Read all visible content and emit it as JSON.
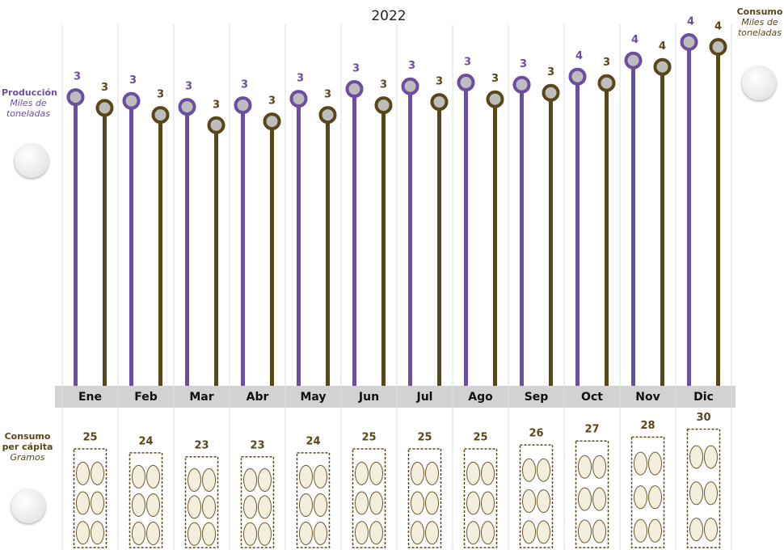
{
  "chart_data": {
    "type": "lollipop",
    "title": "2022",
    "categories": [
      "Ene",
      "Feb",
      "Mar",
      "Abr",
      "May",
      "Jun",
      "Jul",
      "Ago",
      "Sep",
      "Oct",
      "Nov",
      "Dic"
    ],
    "ylim": [
      -2.15,
      4.55
    ],
    "series": [
      {
        "name": "Producción",
        "unit": "Miles de toneladas",
        "color": "#6b4ea2",
        "values": [
          3.2,
          3.13,
          3.02,
          3.05,
          3.17,
          3.35,
          3.4,
          3.47,
          3.43,
          3.58,
          3.88,
          4.22
        ],
        "value_labels": [
          "3",
          "3",
          "3",
          "3",
          "3",
          "3",
          "3",
          "3",
          "3",
          "4",
          "4",
          "4"
        ]
      },
      {
        "name": "Consumo",
        "unit": "Miles de toneladas",
        "color": "#5a4719",
        "values": [
          3.0,
          2.87,
          2.68,
          2.75,
          2.87,
          3.05,
          3.11,
          3.16,
          3.28,
          3.46,
          3.76,
          4.13
        ],
        "value_labels": [
          "3",
          "3",
          "3",
          "3",
          "3",
          "3",
          "3",
          "3",
          "3",
          "3",
          "4",
          "4"
        ]
      }
    ],
    "per_capita": {
      "name": "Consumo per cápita",
      "unit": "Gramos",
      "color": "#5a4719",
      "values": [
        25,
        24,
        23,
        23,
        24,
        25,
        25,
        25,
        26,
        27,
        28,
        30
      ]
    }
  }
}
